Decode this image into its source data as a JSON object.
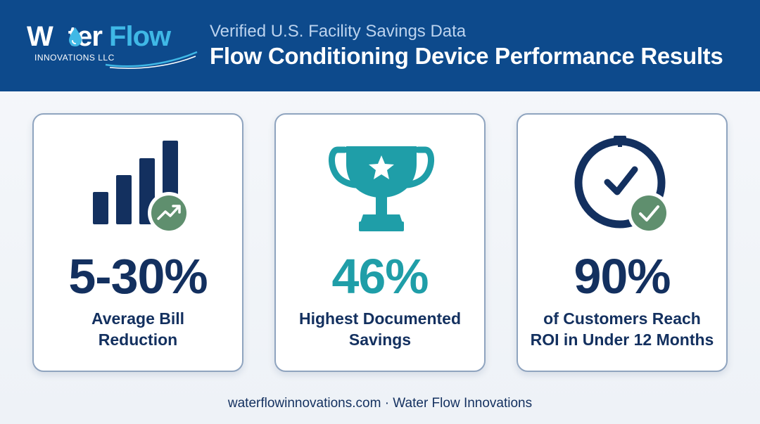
{
  "brand": {
    "logo_word_1": "W",
    "logo_word_2": "ter",
    "logo_word_3": "Flow",
    "logo_sub": "INNOVATIONS LLC"
  },
  "header": {
    "subtitle": "Verified U.S. Facility Savings Data",
    "title": "Flow Conditioning Device Performance Results"
  },
  "cards": [
    {
      "stat": "5-30%",
      "label_line1": "Average Bill",
      "label_line2": "Reduction",
      "icon": "bar-chart-trending-up-icon"
    },
    {
      "stat": "46%",
      "label_line1": "Highest Documented",
      "label_line2": "Savings",
      "icon": "trophy-star-icon"
    },
    {
      "stat": "90%",
      "label_line1": "of Customers Reach",
      "label_line2": "ROI in Under 12 Months",
      "icon": "clock-check-icon"
    }
  ],
  "footer": {
    "text": "waterflowinnovations.com · Water Flow Innovations"
  },
  "colors": {
    "header_bg": "#0d4a8c",
    "navy": "#13305f",
    "teal": "#1f9ea8",
    "green_badge": "#5f8f6e",
    "card_border": "#8fa4bf"
  }
}
